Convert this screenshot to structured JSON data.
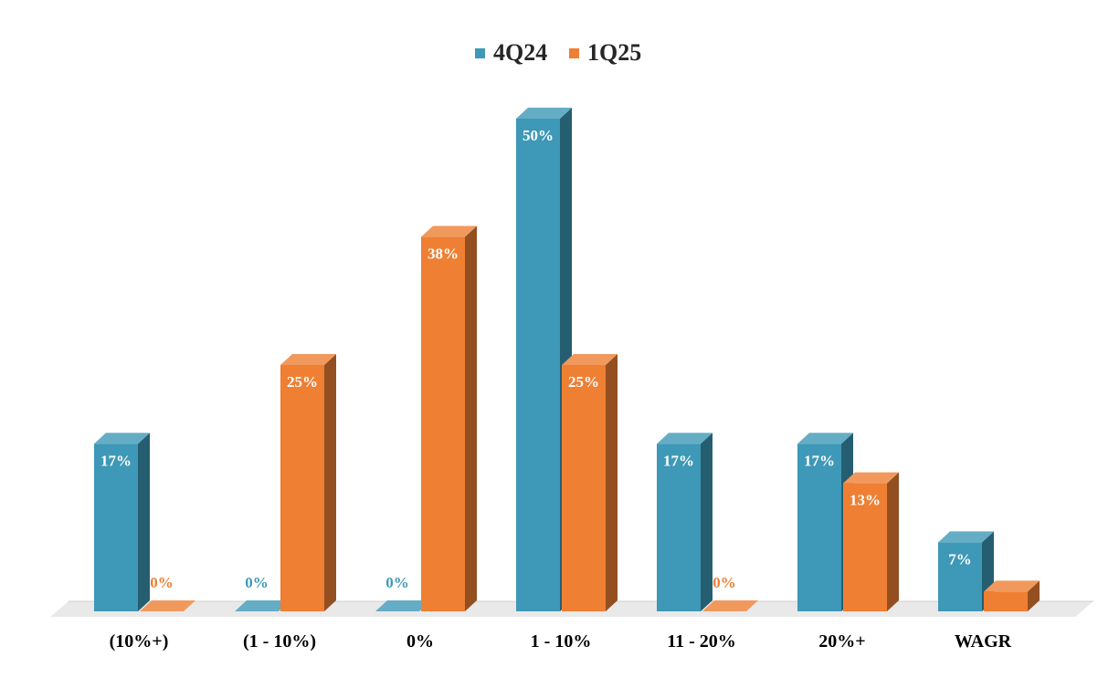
{
  "chart_data": {
    "type": "bar",
    "style": "3d-clustered-column",
    "title": "",
    "xlabel": "",
    "ylabel": "",
    "ylim": [
      0,
      55
    ],
    "grid": false,
    "legend_position": "top-center",
    "categories": [
      "(10%+)",
      "(1 - 10%)",
      "0%",
      "1 - 10%",
      "11 - 20%",
      "20%+",
      "WAGR"
    ],
    "series": [
      {
        "name": "4Q24",
        "color": "#3E98B7",
        "values": [
          17,
          0,
          0,
          50,
          17,
          17,
          7
        ],
        "data_labels": [
          "17%",
          "0%",
          "0%",
          "50%",
          "17%",
          "17%",
          "7%"
        ]
      },
      {
        "name": "1Q25",
        "color": "#EE7F33",
        "values": [
          0,
          25,
          38,
          25,
          0,
          13,
          2
        ],
        "data_labels": [
          "0%",
          "25%",
          "38%",
          "25%",
          "0%",
          "13%",
          ""
        ]
      }
    ]
  }
}
